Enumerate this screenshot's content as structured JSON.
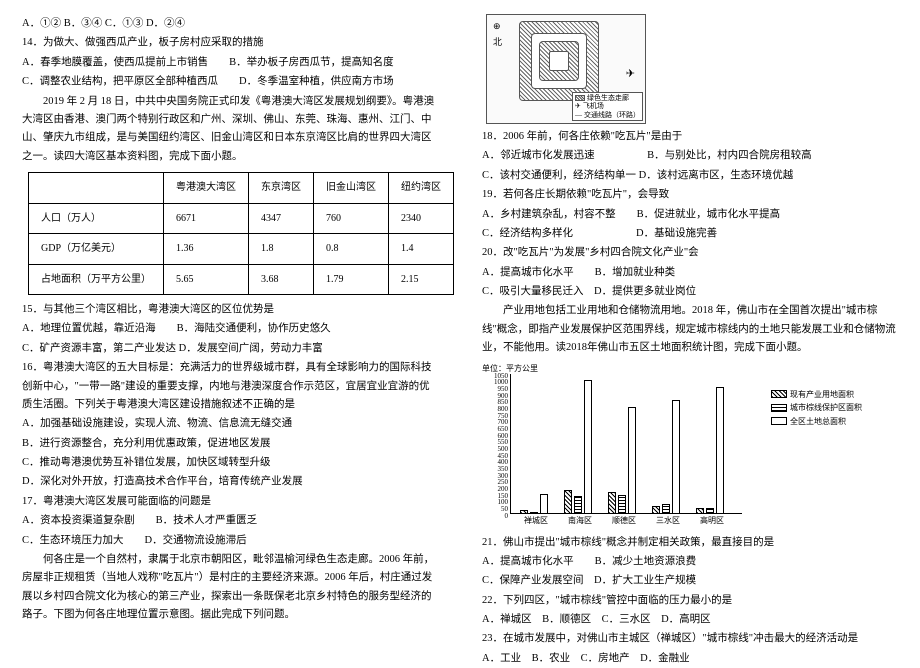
{
  "left": {
    "l0": "A．①② B．③④ C．①③ D．②④",
    "q14": "14．为做大、做强西瓜产业，板子房村应采取的措施",
    "q14a": "A．春季地膜覆盖，使西瓜提前上市销售　　B．举办板子房西瓜节，提高知名度",
    "q14b": "C．调整农业结构，把平原区全部种植西瓜　　D．冬季温室种植，供应南方市场",
    "passage1a": "2019 年 2 月 18 日，中共中央国务院正式印发《粤港澳大湾区发展规划纲要》。粤港澳大湾区由香港、澳门两个特别行政区和广州、深圳、佛山、东莞、珠海、惠州、江门、中山、肇庆九市组成，是与美国纽约湾区、旧金山湾区和日本东京湾区比肩的世界四大湾区之一。读四大湾区基本资料图，完成下面小题。",
    "table": {
      "headers": [
        "",
        "粤港澳大湾区",
        "东京湾区",
        "旧金山湾区",
        "纽约湾区"
      ],
      "rows": [
        [
          "人口（万人）",
          "6671",
          "4347",
          "760",
          "2340"
        ],
        [
          "GDP（万亿美元）",
          "1.36",
          "1.8",
          "0.8",
          "1.4"
        ],
        [
          "占地面积（万平方公里）",
          "5.65",
          "3.68",
          "1.79",
          "2.15"
        ]
      ]
    },
    "q15": "15．与其他三个湾区相比，粤港澳大湾区的区位优势是",
    "q15a": "A．地理位置优越，靠近沿海　　B．海陆交通便利，协作历史悠久",
    "q15b": "C．矿产资源丰富，第二产业发达 D．发展空间广阔，劳动力丰富",
    "q16": "16．粤港澳大湾区的五大目标是：充满活力的世界级城市群，具有全球影响力的国际科技创新中心，\"一带一路\"建设的重要支撑，内地与港澳深度合作示范区，宜居宜业宜游的优质生活圈。下列关于粤港澳大湾区建设措施叙述不正确的是",
    "q16a": "A．加强基础设施建设，实现人流、物流、信息流无缝交通",
    "q16b": "B．进行资源整合，充分利用优惠政策，促进地区发展",
    "q16c": "C．推动粤港澳优势互补错位发展，加快区域转型升级",
    "q16d": "D．深化对外开放，打造高技术合作平台，培育传统产业发展",
    "q17": "17．粤港澳大湾区发展可能面临的问题是",
    "q17a": "A．资本投资渠道复杂剧　　B．技术人才严重匮乏",
    "q17b": "C．生态环境压力加大　　D．交通物流设施滞后",
    "passage2": "何各庄是一个自然村，隶属于北京市朝阳区，毗邻温榆河绿色生态走廊。2006 年前，房屋非正规租赁（当地人戏称\"吃瓦片\"）是村庄的主要经济来源。2006 年后，村庄通过发展以乡村四合院文化为核心的第三产业，探索出一条既保老北京乡村特色的服务型经济的路子。下图为何各庄地理位置示意图。据此完成下列问题。"
  },
  "right": {
    "map": {
      "legend1": "绿色生态走廊",
      "legend2": "飞机场",
      "legend3": "交通线路（环路）"
    },
    "q18": "18．2006 年前，何各庄依赖\"吃瓦片\"是由于",
    "q18a": "A．邻近城市化发展迅速　　　　　B．与别处比，村内四合院房租较高",
    "q18b": "C．该村交通便利，经济结构单一 D．该村远离市区，生态环境优越",
    "q19": "19．若何各庄长期依赖\"吃瓦片\"，会导致",
    "q19a": "A．乡村建筑杂乱，村容不整　　B．促进就业，城市化水平提高",
    "q19b": "C．经济结构多样化　　　　　　D．基础设施完善",
    "q20": "20．改\"吃瓦片\"为发展\"乡村四合院文化产业\"会",
    "q20a": "A．提高城市化水平　　B．增加就业种类",
    "q20b": "C．吸引大量移民迁入　D．提供更多就业岗位",
    "passage3": "产业用地包括工业用地和仓储物流用地。2018 年，佛山市在全国首次提出\"城市棕线\"概念，即指产业发展保护区范围界线，规定城市棕线内的土地只能发展工业和仓储物流业，不能他用。读2018年佛山市五区土地面积统计图，完成下面小题。",
    "chart": {
      "unit": "单位：平方公里",
      "ymax": 1050,
      "ymin": 0,
      "ystep": 50,
      "categories": [
        "禅城区",
        "南海区",
        "顺德区",
        "三水区",
        "高明区"
      ],
      "series": [
        {
          "name": "现有产业用地面积",
          "key": "a",
          "color": "hatch45",
          "values": [
            25,
            180,
            160,
            60,
            40
          ]
        },
        {
          "name": "城市棕线保护区面积",
          "key": "b",
          "color": "hatch0",
          "values": [
            10,
            130,
            140,
            70,
            40
          ]
        },
        {
          "name": "全区土地总面积",
          "key": "c",
          "color": "white",
          "values": [
            150,
            1000,
            800,
            850,
            950
          ]
        }
      ]
    },
    "q21": "21．佛山市提出\"城市棕线\"概念并制定相关政策，最直接目的是",
    "q21a": "A．提高城市化水平　　B．减少土地资源浪费",
    "q21b": "C．保障产业发展空间　D．扩大工业生产规模",
    "q22": "22．下列四区，\"城市棕线\"管控中面临的压力最小的是",
    "q22a": "A．禅城区　B．顺德区　C．三水区　D．高明区",
    "q23": "23．在城市发展中，对佛山市主城区（禅城区）\"城市棕线\"冲击最大的经济活动是",
    "q23a": "A．工业　B．农业　C．房地产　D．金融业"
  }
}
